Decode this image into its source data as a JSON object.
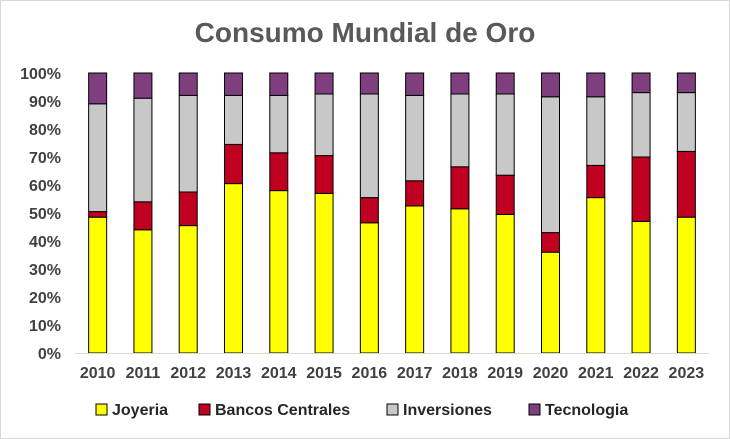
{
  "chart_data": {
    "type": "bar",
    "stacked": true,
    "percent": true,
    "title": "Consumo Mundial de Oro",
    "xlabel": "",
    "ylabel": "",
    "ylim": [
      0,
      100
    ],
    "yticks": [
      "0%",
      "10%",
      "20%",
      "30%",
      "40%",
      "50%",
      "60%",
      "70%",
      "80%",
      "90%",
      "100%"
    ],
    "grid": false,
    "legend_position": "bottom",
    "categories": [
      "2010",
      "2011",
      "2012",
      "2013",
      "2014",
      "2015",
      "2016",
      "2017",
      "2018",
      "2019",
      "2020",
      "2021",
      "2022",
      "2023"
    ],
    "series": [
      {
        "name": "Joyeria",
        "color": "#ffff00",
        "values": [
          48.5,
          44,
          45.5,
          60.5,
          58,
          57,
          46.5,
          52.5,
          51.5,
          49.5,
          36,
          55.5,
          47,
          48.5
        ]
      },
      {
        "name": "Bancos Centrales",
        "color": "#c00020",
        "values": [
          2,
          10,
          12,
          14,
          13.5,
          13.5,
          9,
          9,
          15,
          14,
          7,
          11.5,
          23,
          23.5
        ]
      },
      {
        "name": "Inversiones",
        "color": "#c8c8c8",
        "values": [
          38.5,
          37,
          34.5,
          17.5,
          20.5,
          22,
          37,
          30.5,
          26,
          29,
          48.5,
          24.5,
          23,
          21
        ]
      },
      {
        "name": "Tecnologia",
        "color": "#7f3f7f",
        "values": [
          11,
          9,
          8,
          8,
          8,
          7.5,
          7.5,
          8,
          7.5,
          7.5,
          8.5,
          8.5,
          7,
          7
        ]
      }
    ]
  }
}
